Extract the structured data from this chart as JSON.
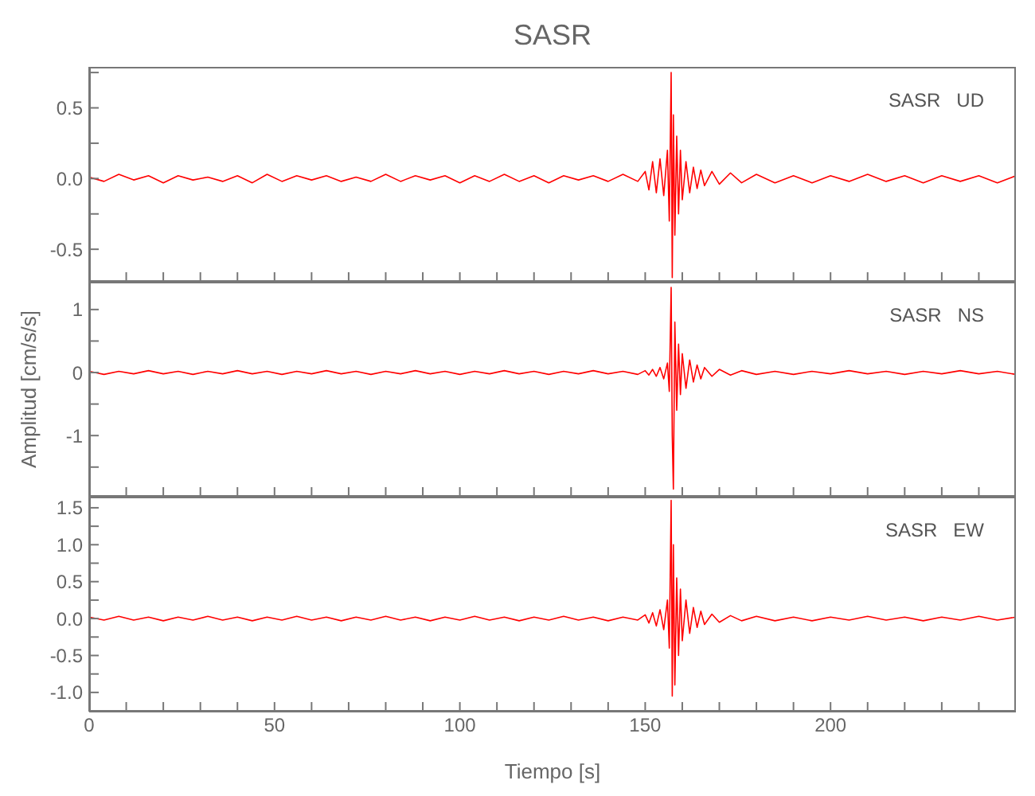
{
  "chart_data": [
    {
      "type": "line",
      "title": "SASR",
      "annotations": [
        "SASR   UD"
      ],
      "tick_labels": "y",
      "x": [
        0,
        4,
        8,
        12,
        16,
        20,
        24,
        28,
        32,
        36,
        40,
        44,
        48,
        52,
        56,
        60,
        64,
        68,
        72,
        76,
        80,
        84,
        88,
        92,
        96,
        100,
        104,
        108,
        112,
        116,
        120,
        124,
        128,
        132,
        136,
        140,
        144,
        148,
        150,
        151,
        152,
        153,
        154,
        155,
        156,
        156.5,
        157,
        157.3,
        157.6,
        158,
        158.5,
        159,
        159.5,
        160,
        161,
        162,
        163,
        164,
        165,
        166,
        168,
        170,
        173,
        176,
        180,
        185,
        190,
        195,
        200,
        205,
        210,
        215,
        220,
        225,
        230,
        235,
        240,
        245,
        250
      ],
      "series": [
        {
          "color": "#ff0000",
          "values": [
            0.01,
            -0.02,
            0.03,
            -0.01,
            0.02,
            -0.03,
            0.02,
            -0.01,
            0.01,
            -0.02,
            0.02,
            -0.03,
            0.03,
            -0.02,
            0.02,
            -0.01,
            0.02,
            -0.02,
            0.01,
            -0.02,
            0.03,
            -0.02,
            0.02,
            -0.01,
            0.02,
            -0.03,
            0.02,
            -0.02,
            0.03,
            -0.02,
            0.02,
            -0.03,
            0.02,
            -0.01,
            0.02,
            -0.02,
            0.03,
            -0.02,
            0.05,
            -0.08,
            0.12,
            -0.1,
            0.14,
            -0.12,
            0.2,
            -0.3,
            0.75,
            -0.7,
            0.45,
            -0.4,
            0.3,
            -0.25,
            0.2,
            -0.15,
            0.12,
            -0.1,
            0.08,
            -0.07,
            0.06,
            -0.05,
            0.05,
            -0.04,
            0.04,
            -0.03,
            0.03,
            -0.03,
            0.02,
            -0.03,
            0.02,
            -0.02,
            0.03,
            -0.02,
            0.02,
            -0.03,
            0.02,
            -0.02,
            0.02,
            -0.03,
            0.02
          ]
        }
      ],
      "xlim": [
        0,
        250
      ],
      "xticks": [
        {
          "value": 0,
          "label": null
        },
        {
          "value": 10,
          "label": null
        },
        {
          "value": 20,
          "label": null
        },
        {
          "value": 30,
          "label": null
        },
        {
          "value": 40,
          "label": null
        },
        {
          "value": 50,
          "label": null
        },
        {
          "value": 60,
          "label": null
        },
        {
          "value": 70,
          "label": null
        },
        {
          "value": 80,
          "label": null
        },
        {
          "value": 90,
          "label": null
        },
        {
          "value": 100,
          "label": null
        },
        {
          "value": 110,
          "label": null
        },
        {
          "value": 120,
          "label": null
        },
        {
          "value": 130,
          "label": null
        },
        {
          "value": 140,
          "label": null
        },
        {
          "value": 150,
          "label": null
        },
        {
          "value": 160,
          "label": null
        },
        {
          "value": 170,
          "label": null
        },
        {
          "value": 180,
          "label": null
        },
        {
          "value": 190,
          "label": null
        },
        {
          "value": 200,
          "label": null
        },
        {
          "value": 210,
          "label": null
        },
        {
          "value": 220,
          "label": null
        },
        {
          "value": 230,
          "label": null
        },
        {
          "value": 240,
          "label": null
        }
      ],
      "ylim": [
        -0.73,
        0.79
      ],
      "yticks": [
        {
          "value": -0.5,
          "label": "-0.5"
        },
        {
          "value": -0.25,
          "label": null
        },
        {
          "value": 0,
          "label": "0.0"
        },
        {
          "value": 0.25,
          "label": null
        },
        {
          "value": 0.5,
          "label": "0.5"
        },
        {
          "value": 0.75,
          "label": null
        }
      ]
    },
    {
      "type": "line",
      "ylabel": "Amplitud [cm/s/s]",
      "annotations": [
        "SASR   NS"
      ],
      "tick_labels": "y",
      "x": [
        0,
        4,
        8,
        12,
        16,
        20,
        24,
        28,
        32,
        36,
        40,
        44,
        48,
        52,
        56,
        60,
        64,
        68,
        72,
        76,
        80,
        84,
        88,
        92,
        96,
        100,
        104,
        108,
        112,
        116,
        120,
        124,
        128,
        132,
        136,
        140,
        144,
        148,
        150,
        151,
        152,
        153,
        154,
        155,
        156,
        156.5,
        157,
        157.3,
        157.6,
        158,
        158.5,
        159,
        159.5,
        160,
        161,
        162,
        163,
        164,
        165,
        166,
        168,
        170,
        173,
        176,
        180,
        185,
        190,
        195,
        200,
        205,
        210,
        215,
        220,
        225,
        230,
        235,
        240,
        245,
        250
      ],
      "series": [
        {
          "color": "#ff0000",
          "values": [
            0.02,
            -0.03,
            0.02,
            -0.02,
            0.03,
            -0.02,
            0.02,
            -0.03,
            0.02,
            -0.02,
            0.03,
            -0.02,
            0.02,
            -0.03,
            0.02,
            -0.02,
            0.03,
            -0.02,
            0.02,
            -0.03,
            0.02,
            -0.02,
            0.03,
            -0.02,
            0.02,
            -0.03,
            0.02,
            -0.02,
            0.03,
            -0.02,
            0.02,
            -0.03,
            0.02,
            -0.02,
            0.03,
            -0.02,
            0.02,
            -0.03,
            0.03,
            -0.04,
            0.05,
            -0.06,
            0.08,
            -0.1,
            0.15,
            -0.3,
            1.35,
            -1.0,
            -1.85,
            0.8,
            -0.6,
            0.45,
            -0.35,
            0.3,
            -0.25,
            0.2,
            -0.15,
            0.12,
            -0.1,
            0.08,
            -0.06,
            0.05,
            -0.04,
            0.03,
            -0.03,
            0.02,
            -0.03,
            0.02,
            -0.02,
            0.03,
            -0.02,
            0.02,
            -0.03,
            0.02,
            -0.02,
            0.03,
            -0.02,
            0.02,
            -0.03
          ]
        }
      ],
      "xlim": [
        0,
        250
      ],
      "xticks": [
        {
          "value": 0,
          "label": null
        },
        {
          "value": 10,
          "label": null
        },
        {
          "value": 20,
          "label": null
        },
        {
          "value": 30,
          "label": null
        },
        {
          "value": 40,
          "label": null
        },
        {
          "value": 50,
          "label": null
        },
        {
          "value": 60,
          "label": null
        },
        {
          "value": 70,
          "label": null
        },
        {
          "value": 80,
          "label": null
        },
        {
          "value": 90,
          "label": null
        },
        {
          "value": 100,
          "label": null
        },
        {
          "value": 110,
          "label": null
        },
        {
          "value": 120,
          "label": null
        },
        {
          "value": 130,
          "label": null
        },
        {
          "value": 140,
          "label": null
        },
        {
          "value": 150,
          "label": null
        },
        {
          "value": 160,
          "label": null
        },
        {
          "value": 170,
          "label": null
        },
        {
          "value": 180,
          "label": null
        },
        {
          "value": 190,
          "label": null
        },
        {
          "value": 200,
          "label": null
        },
        {
          "value": 210,
          "label": null
        },
        {
          "value": 220,
          "label": null
        },
        {
          "value": 230,
          "label": null
        },
        {
          "value": 240,
          "label": null
        }
      ],
      "ylim": [
        -1.97,
        1.44
      ],
      "yticks": [
        {
          "value": -1.5,
          "label": null
        },
        -1,
        {
          "value": -0.5,
          "label": null
        },
        0,
        {
          "value": 0.5,
          "label": null
        },
        1
      ]
    },
    {
      "type": "line",
      "xlabel": "Tiempo [s]",
      "annotations": [
        "SASR   EW"
      ],
      "x": [
        0,
        4,
        8,
        12,
        16,
        20,
        24,
        28,
        32,
        36,
        40,
        44,
        48,
        52,
        56,
        60,
        64,
        68,
        72,
        76,
        80,
        84,
        88,
        92,
        96,
        100,
        104,
        108,
        112,
        116,
        120,
        124,
        128,
        132,
        136,
        140,
        144,
        148,
        150,
        151,
        152,
        153,
        154,
        155,
        156,
        156.5,
        157,
        157.3,
        157.6,
        158,
        158.5,
        159,
        159.5,
        160,
        161,
        162,
        163,
        164,
        165,
        166,
        168,
        170,
        173,
        176,
        180,
        185,
        190,
        195,
        200,
        205,
        210,
        215,
        220,
        225,
        230,
        235,
        240,
        245,
        250
      ],
      "series": [
        {
          "color": "#ff0000",
          "values": [
            0.02,
            -0.02,
            0.03,
            -0.02,
            0.02,
            -0.03,
            0.02,
            -0.02,
            0.03,
            -0.02,
            0.02,
            -0.03,
            0.02,
            -0.02,
            0.03,
            -0.02,
            0.02,
            -0.03,
            0.02,
            -0.02,
            0.03,
            -0.02,
            0.02,
            -0.03,
            0.02,
            -0.02,
            0.03,
            -0.02,
            0.02,
            -0.03,
            0.02,
            -0.02,
            0.03,
            -0.02,
            0.02,
            -0.03,
            0.02,
            -0.02,
            0.05,
            -0.06,
            0.08,
            -0.1,
            0.12,
            -0.15,
            0.25,
            -0.4,
            1.6,
            -1.05,
            1.0,
            -0.9,
            0.55,
            -0.5,
            0.4,
            -0.3,
            0.25,
            -0.2,
            0.15,
            -0.12,
            0.1,
            -0.08,
            0.06,
            -0.05,
            0.04,
            -0.03,
            0.03,
            -0.03,
            0.02,
            -0.03,
            0.02,
            -0.02,
            0.03,
            -0.02,
            0.02,
            -0.03,
            0.02,
            -0.02,
            0.03,
            -0.02,
            0.02
          ]
        }
      ],
      "xlim": [
        0,
        250
      ],
      "xticks": [
        0,
        {
          "value": 10,
          "label": null
        },
        {
          "value": 20,
          "label": null
        },
        {
          "value": 30,
          "label": null
        },
        {
          "value": 40,
          "label": null
        },
        50,
        {
          "value": 60,
          "label": null
        },
        {
          "value": 70,
          "label": null
        },
        {
          "value": 80,
          "label": null
        },
        {
          "value": 90,
          "label": null
        },
        100,
        {
          "value": 110,
          "label": null
        },
        {
          "value": 120,
          "label": null
        },
        {
          "value": 130,
          "label": null
        },
        {
          "value": 140,
          "label": null
        },
        150,
        {
          "value": 160,
          "label": null
        },
        {
          "value": 170,
          "label": null
        },
        {
          "value": 180,
          "label": null
        },
        {
          "value": 190,
          "label": null
        },
        200,
        {
          "value": 210,
          "label": null
        },
        {
          "value": 220,
          "label": null
        },
        {
          "value": 230,
          "label": null
        },
        {
          "value": 240,
          "label": null
        }
      ],
      "ylim": [
        -1.26,
        1.65
      ],
      "yticks": [
        {
          "value": -1,
          "label": "-1.0"
        },
        {
          "value": -0.75,
          "label": null
        },
        {
          "value": -0.5,
          "label": "-0.5"
        },
        {
          "value": -0.25,
          "label": null
        },
        {
          "value": 0,
          "label": "0.0"
        },
        {
          "value": 0.25,
          "label": null
        },
        {
          "value": 0.5,
          "label": "0.5"
        },
        {
          "value": 0.75,
          "label": null
        },
        {
          "value": 1,
          "label": "1.0"
        },
        {
          "value": 1.25,
          "label": null
        },
        1.5
      ]
    }
  ]
}
